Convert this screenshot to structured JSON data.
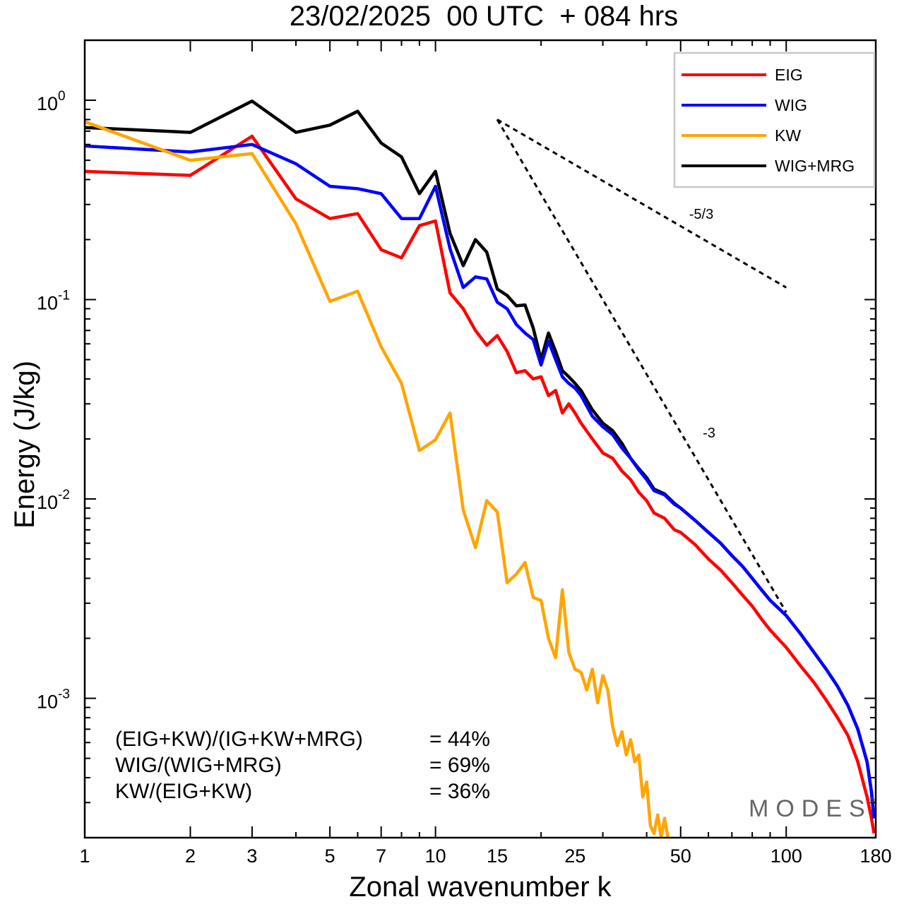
{
  "chart_data": {
    "type": "line",
    "title": "23/02/2025  00 UTC  + 084 hrs",
    "xlabel": "Zonal wavenumber k",
    "ylabel": "Energy (J/kg)",
    "x_scale": "log",
    "y_scale": "log",
    "xlim": [
      1,
      180
    ],
    "ylim": [
      0.0002,
      2.0
    ],
    "x_ticks": [
      1,
      2,
      3,
      5,
      7,
      10,
      15,
      25,
      50,
      100,
      180
    ],
    "x_tick_labels": [
      "1",
      "2",
      "3",
      "5",
      "7",
      "10",
      "15",
      "25",
      "50",
      "100",
      "180"
    ],
    "y_ticks": [
      {
        "value": 1.0,
        "base": "10",
        "exp": "0"
      },
      {
        "value": 0.1,
        "base": "10",
        "exp": "-1"
      },
      {
        "value": 0.01,
        "base": "10",
        "exp": "-2"
      },
      {
        "value": 0.001,
        "base": "10",
        "exp": "-3"
      }
    ],
    "grid": false,
    "legend_position": "top-right",
    "series": [
      {
        "name": "EIG",
        "color": "#ff0000",
        "points": [
          [
            1,
            0.44
          ],
          [
            2,
            0.42
          ],
          [
            3,
            0.66
          ],
          [
            4,
            0.32
          ],
          [
            5,
            0.255
          ],
          [
            6,
            0.27
          ],
          [
            7,
            0.178
          ],
          [
            8,
            0.162
          ],
          [
            9,
            0.235
          ],
          [
            10,
            0.248
          ],
          [
            11,
            0.108
          ],
          [
            12,
            0.09
          ],
          [
            13,
            0.07
          ],
          [
            14,
            0.059
          ],
          [
            15,
            0.066
          ],
          [
            16,
            0.055
          ],
          [
            17,
            0.043
          ],
          [
            18,
            0.044
          ],
          [
            19,
            0.04
          ],
          [
            20,
            0.041
          ],
          [
            21,
            0.033
          ],
          [
            22,
            0.035
          ],
          [
            23,
            0.027
          ],
          [
            24,
            0.03
          ],
          [
            25,
            0.027
          ],
          [
            26,
            0.024
          ],
          [
            28,
            0.02
          ],
          [
            30,
            0.017
          ],
          [
            32,
            0.016
          ],
          [
            34,
            0.0138
          ],
          [
            36,
            0.0125
          ],
          [
            38,
            0.0108
          ],
          [
            40,
            0.0098
          ],
          [
            42,
            0.0085
          ],
          [
            45,
            0.008
          ],
          [
            48,
            0.007
          ],
          [
            50,
            0.0068
          ],
          [
            55,
            0.0059
          ],
          [
            60,
            0.005
          ],
          [
            65,
            0.0044
          ],
          [
            70,
            0.0038
          ],
          [
            75,
            0.0033
          ],
          [
            80,
            0.0029
          ],
          [
            85,
            0.0025
          ],
          [
            90,
            0.0022
          ],
          [
            100,
            0.0018
          ],
          [
            110,
            0.00145
          ],
          [
            120,
            0.0012
          ],
          [
            130,
            0.00098
          ],
          [
            140,
            0.0008
          ],
          [
            150,
            0.00065
          ],
          [
            160,
            0.00048
          ],
          [
            170,
            0.00032
          ],
          [
            175,
            0.00025
          ],
          [
            178,
            0.00021
          ]
        ]
      },
      {
        "name": "WIG",
        "color": "#0000ff",
        "points": [
          [
            1,
            0.59
          ],
          [
            2,
            0.55
          ],
          [
            3,
            0.6
          ],
          [
            4,
            0.48
          ],
          [
            5,
            0.37
          ],
          [
            6,
            0.36
          ],
          [
            7,
            0.34
          ],
          [
            8,
            0.255
          ],
          [
            9,
            0.255
          ],
          [
            10,
            0.37
          ],
          [
            11,
            0.18
          ],
          [
            12,
            0.115
          ],
          [
            13,
            0.13
          ],
          [
            14,
            0.127
          ],
          [
            15,
            0.097
          ],
          [
            16,
            0.09
          ],
          [
            17,
            0.075
          ],
          [
            18,
            0.068
          ],
          [
            19,
            0.063
          ],
          [
            20,
            0.047
          ],
          [
            21,
            0.062
          ],
          [
            22,
            0.05
          ],
          [
            23,
            0.041
          ],
          [
            24,
            0.038
          ],
          [
            25,
            0.036
          ],
          [
            26,
            0.033
          ],
          [
            28,
            0.026
          ],
          [
            30,
            0.023
          ],
          [
            32,
            0.021
          ],
          [
            34,
            0.018
          ],
          [
            36,
            0.016
          ],
          [
            38,
            0.014
          ],
          [
            40,
            0.0125
          ],
          [
            42,
            0.011
          ],
          [
            45,
            0.0105
          ],
          [
            48,
            0.0094
          ],
          [
            50,
            0.009
          ],
          [
            55,
            0.0078
          ],
          [
            60,
            0.0068
          ],
          [
            65,
            0.006
          ],
          [
            70,
            0.0052
          ],
          [
            75,
            0.0046
          ],
          [
            80,
            0.004
          ],
          [
            85,
            0.0035
          ],
          [
            90,
            0.0031
          ],
          [
            100,
            0.0026
          ],
          [
            110,
            0.0021
          ],
          [
            120,
            0.0017
          ],
          [
            130,
            0.0014
          ],
          [
            140,
            0.00115
          ],
          [
            150,
            0.00092
          ],
          [
            160,
            0.0007
          ],
          [
            170,
            0.00048
          ],
          [
            175,
            0.00034
          ],
          [
            178,
            0.00025
          ]
        ]
      },
      {
        "name": "KW",
        "color": "#ffa500",
        "points": [
          [
            1,
            0.78
          ],
          [
            2,
            0.5
          ],
          [
            3,
            0.54
          ],
          [
            4,
            0.24
          ],
          [
            5,
            0.098
          ],
          [
            6,
            0.11
          ],
          [
            7,
            0.058
          ],
          [
            8,
            0.038
          ],
          [
            9,
            0.0175
          ],
          [
            10,
            0.0198
          ],
          [
            11,
            0.027
          ],
          [
            12,
            0.0088
          ],
          [
            13,
            0.0057
          ],
          [
            14,
            0.0098
          ],
          [
            15,
            0.0086
          ],
          [
            16,
            0.0038
          ],
          [
            17,
            0.0042
          ],
          [
            18,
            0.0048
          ],
          [
            19,
            0.0032
          ],
          [
            20,
            0.0031
          ],
          [
            21,
            0.002
          ],
          [
            22,
            0.0016
          ],
          [
            23,
            0.0035
          ],
          [
            24,
            0.0017
          ],
          [
            25,
            0.0014
          ],
          [
            26,
            0.00135
          ],
          [
            27,
            0.0011
          ],
          [
            28,
            0.0014
          ],
          [
            29,
            0.00095
          ],
          [
            30,
            0.0013
          ],
          [
            31,
            0.0011
          ],
          [
            32,
            0.00072
          ],
          [
            33,
            0.00058
          ],
          [
            34,
            0.00068
          ],
          [
            35,
            0.00052
          ],
          [
            36,
            0.00062
          ],
          [
            37,
            0.00048
          ],
          [
            38,
            0.00052
          ],
          [
            39,
            0.00032
          ],
          [
            40,
            0.00038
          ],
          [
            41,
            0.00023
          ],
          [
            42,
            0.00021
          ],
          [
            43,
            0.00026
          ],
          [
            44,
            0.0002
          ],
          [
            45,
            0.00025
          ],
          [
            46,
            0.0002
          ]
        ]
      },
      {
        "name": "WIG+MRG",
        "color": "#000000",
        "points": [
          [
            1,
            0.73
          ],
          [
            2,
            0.69
          ],
          [
            3,
            0.99
          ],
          [
            4,
            0.69
          ],
          [
            5,
            0.75
          ],
          [
            6,
            0.88
          ],
          [
            7,
            0.61
          ],
          [
            8,
            0.52
          ],
          [
            9,
            0.34
          ],
          [
            10,
            0.44
          ],
          [
            11,
            0.215
          ],
          [
            12,
            0.148
          ],
          [
            13,
            0.2
          ],
          [
            14,
            0.173
          ],
          [
            15,
            0.113
          ],
          [
            16,
            0.105
          ],
          [
            17,
            0.093
          ],
          [
            18,
            0.094
          ],
          [
            19,
            0.072
          ],
          [
            20,
            0.05
          ],
          [
            21,
            0.068
          ],
          [
            22,
            0.055
          ],
          [
            23,
            0.044
          ],
          [
            24,
            0.041
          ],
          [
            25,
            0.038
          ],
          [
            26,
            0.035
          ],
          [
            28,
            0.028
          ],
          [
            30,
            0.024
          ],
          [
            32,
            0.022
          ],
          [
            34,
            0.019
          ],
          [
            36,
            0.016
          ],
          [
            38,
            0.0142
          ],
          [
            40,
            0.0128
          ],
          [
            42,
            0.0112
          ],
          [
            45,
            0.0106
          ],
          [
            48,
            0.0095
          ],
          [
            50,
            0.009
          ],
          [
            55,
            0.0078
          ],
          [
            60,
            0.0068
          ],
          [
            65,
            0.006
          ],
          [
            70,
            0.0052
          ],
          [
            75,
            0.0046
          ],
          [
            80,
            0.004
          ],
          [
            85,
            0.0035
          ],
          [
            90,
            0.0031
          ],
          [
            100,
            0.0026
          ],
          [
            110,
            0.0021
          ],
          [
            120,
            0.0017
          ],
          [
            130,
            0.0014
          ],
          [
            140,
            0.00115
          ],
          [
            150,
            0.00092
          ],
          [
            160,
            0.0007
          ],
          [
            170,
            0.00048
          ],
          [
            175,
            0.00034
          ],
          [
            178,
            0.00025
          ]
        ]
      }
    ],
    "reference_lines": [
      {
        "label": "-5/3",
        "points": [
          [
            15,
            0.8
          ],
          [
            100,
            0.115
          ]
        ],
        "style": "dashed"
      },
      {
        "label": "-3",
        "points": [
          [
            15,
            0.8
          ],
          [
            100,
            0.0027
          ]
        ],
        "style": "dashed"
      }
    ],
    "annotations": [
      {
        "label": "(EIG+KW)/(IG+KW+MRG)",
        "value": "= 44%"
      },
      {
        "label": "WIG/(WIG+MRG)",
        "value": "= 69%"
      },
      {
        "label": "KW/(EIG+KW)",
        "value": "= 36%"
      }
    ]
  },
  "brand": {
    "text": "MODES",
    "copyright": "©"
  }
}
